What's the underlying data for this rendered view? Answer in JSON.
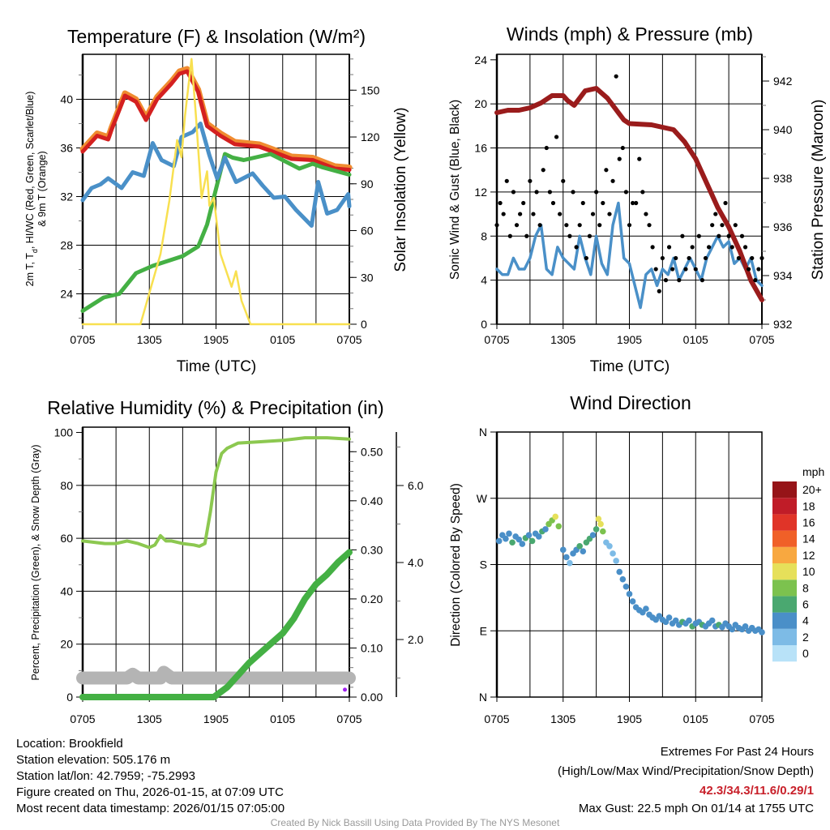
{
  "chart_data": [
    {
      "type": "line",
      "title": "Temperature (F) & Insolation (W/m²)",
      "xlabel": "Time (UTC)",
      "x_units": "hours since 0705 UTC",
      "x_ticks": [
        "0705",
        "1305",
        "1905",
        "0105",
        "0705"
      ],
      "ylabel_left": {
        "a": "2m T, T",
        "sub": "d",
        "b": ", HI/WC (Red, Green, Scarlet/Blue)",
        "line2": "& 9m T (Orange)"
      },
      "ylabel_right": "Solar Insolation (Yellow)",
      "ylim": [
        21.5,
        43.7
      ],
      "y_ticks": [
        "24",
        "28",
        "32",
        "36",
        "40"
      ],
      "y2lim": [
        0,
        173
      ],
      "y2_ticks": [
        "0",
        "30",
        "60",
        "90",
        "120",
        "150"
      ],
      "series": [
        {
          "name": "9m T",
          "color": "#f08c30",
          "axis": "left",
          "x": [
            0,
            1.3,
            2.3,
            2.6,
            3.8,
            4.8,
            5.7,
            6.7,
            8,
            8.7,
            9.4,
            10.4,
            11.2,
            12.4,
            13.7,
            15.9,
            17.1,
            18.8,
            20.7,
            22.7,
            24
          ],
          "values": [
            35.9,
            37.2,
            36.9,
            37.7,
            40.5,
            40.0,
            38.5,
            40.2,
            41.5,
            42.3,
            42.5,
            40.8,
            38.0,
            37.2,
            36.5,
            36.3,
            35.9,
            35.3,
            35.2,
            34.5,
            34.4
          ]
        },
        {
          "name": "2m T",
          "color": "#d42020",
          "axis": "left",
          "x": [
            0,
            1.3,
            2.3,
            2.6,
            3.8,
            4.8,
            5.7,
            6.7,
            8,
            8.7,
            9.4,
            10.4,
            11.2,
            12.4,
            13.7,
            15.9,
            17.1,
            18.8,
            20.7,
            22.7,
            24
          ],
          "values": [
            35.7,
            37.0,
            36.7,
            37.5,
            40.3,
            39.8,
            38.3,
            40.0,
            41.3,
            42.1,
            42.3,
            40.6,
            37.8,
            37.0,
            36.3,
            36.1,
            35.7,
            35.1,
            35.0,
            34.3,
            34.2
          ]
        },
        {
          "name": "Td",
          "color": "#44b044",
          "axis": "left",
          "x": [
            0,
            1.9,
            3.3,
            4.8,
            6.3,
            9,
            10.4,
            11.2,
            12.1,
            12.8,
            13.5,
            14.5,
            16.9,
            18,
            19.5,
            20.7,
            21.6,
            24
          ],
          "values": [
            22.6,
            23.7,
            24.0,
            25.7,
            26.3,
            27.1,
            27.9,
            29.7,
            33.0,
            35.5,
            35.2,
            35.0,
            35.5,
            35.0,
            34.3,
            34.7,
            34.4,
            33.8
          ]
        },
        {
          "name": "Wind Chill",
          "color": "#4a90c8",
          "axis": "left",
          "x": [
            0,
            0.8,
            1.6,
            2.3,
            3.5,
            4.5,
            5.5,
            6.3,
            7.1,
            8.2,
            8.9,
            9.9,
            10.6,
            11.4,
            12.1,
            12.8,
            13.8,
            15.3,
            16.2,
            17.2,
            18.2,
            19.2,
            20.6,
            21.2,
            22,
            22.9,
            23.9,
            24
          ],
          "values": [
            31.7,
            32.7,
            33.0,
            33.5,
            32.7,
            34.0,
            33.7,
            36.4,
            35.0,
            34.5,
            36.9,
            37.3,
            38.0,
            35.4,
            33.5,
            35.2,
            33.2,
            33.9,
            32.9,
            31.9,
            32.0,
            30.9,
            29.6,
            33.2,
            30.6,
            30.9,
            32.2,
            31.2
          ]
        },
        {
          "name": "Solar Insolation",
          "color": "#f8e050",
          "axis": "right",
          "x": [
            0,
            5.2,
            6,
            7,
            7.8,
            8.5,
            8.9,
            9.2,
            9.8,
            10.2,
            10.7,
            11.2,
            11.4,
            11.8,
            12.4,
            13.4,
            13.8,
            14.3,
            15.1,
            24
          ],
          "values": [
            0,
            0,
            20,
            45,
            79,
            118,
            107,
            133,
            170,
            133,
            81,
            98,
            76,
            81,
            45,
            24,
            34,
            15,
            0,
            0
          ]
        }
      ]
    },
    {
      "type": "line",
      "title": "Winds (mph) & Pressure (mb)",
      "xlabel": "Time (UTC)",
      "x_ticks": [
        "0705",
        "1305",
        "1905",
        "0105",
        "0705"
      ],
      "ylabel_left": "Sonic Wind & Gust (Blue, Black)",
      "ylabel_right": "Station Pressure (Maroon)",
      "ylim": [
        0,
        24.5
      ],
      "y_ticks": [
        "0",
        "4",
        "8",
        "12",
        "16",
        "20",
        "24"
      ],
      "y2lim": [
        932,
        943.1
      ],
      "y2_ticks": [
        "932",
        "934",
        "936",
        "938",
        "940",
        "942"
      ],
      "wind": {
        "name": "Sonic Wind",
        "color": "#4a90c8",
        "x_start": 0,
        "x_step": 0.5,
        "values": [
          5,
          4.5,
          4.5,
          6,
          5,
          5,
          6,
          8,
          9,
          5,
          4.5,
          7,
          6,
          5.5,
          5,
          8,
          6,
          4.5,
          8,
          5.5,
          4.5,
          9,
          11,
          6,
          5.5,
          3.5,
          1.5,
          4.5,
          5,
          3.5,
          5,
          4.5,
          6,
          4,
          5,
          6,
          5,
          4,
          6,
          7,
          8,
          7,
          7.5,
          5.5,
          6,
          5,
          6,
          4,
          3.5
        ]
      },
      "gust": {
        "name": "Gust",
        "color": "#000000",
        "x_start": 0,
        "x_step": 0.3,
        "values": [
          9,
          11,
          10,
          13,
          8,
          12,
          9,
          10,
          11,
          8,
          13,
          10,
          12,
          9,
          14,
          16,
          12,
          11,
          17,
          10,
          13,
          9,
          8,
          12,
          7,
          9,
          11,
          6,
          8,
          10,
          12,
          9,
          11,
          14,
          10,
          13,
          22.5,
          15,
          16,
          12,
          9,
          11,
          11,
          15,
          12,
          10,
          9,
          7,
          5,
          3,
          6,
          4,
          7,
          5,
          6,
          4,
          8,
          5,
          6,
          7,
          5,
          8,
          4,
          6,
          7,
          9,
          10,
          8,
          9,
          11,
          8,
          7,
          9,
          6,
          8,
          7,
          5,
          6,
          4,
          5,
          6
        ]
      },
      "pressure": {
        "name": "Station Pressure",
        "color": "#9a1c1c",
        "x": [
          0,
          1,
          2,
          3,
          4,
          5,
          6,
          6.4,
          7,
          8,
          9,
          10,
          10.5,
          11.5,
          12,
          14,
          16,
          17,
          18,
          19,
          20,
          21,
          22,
          23,
          24
        ],
        "values": [
          940.7,
          940.8,
          940.8,
          940.9,
          941.1,
          941.4,
          941.4,
          941.2,
          941.0,
          941.6,
          941.7,
          941.3,
          941.0,
          940.4,
          940.25,
          940.2,
          940.0,
          939.5,
          938.8,
          937.8,
          936.8,
          936.0,
          935.0,
          933.8,
          933.0
        ]
      }
    },
    {
      "type": "line",
      "title": "Relative Humidity (%) & Precipitation (in)",
      "x_ticks": [
        "0705",
        "1305",
        "1905",
        "0105",
        "0705"
      ],
      "ylabel_left": "Percent, Precipitation (Green), & Snow Depth (Gray)",
      "ylim": [
        0,
        102
      ],
      "y_ticks": [
        "0",
        "20",
        "40",
        "60",
        "80",
        "100"
      ],
      "y2lim": [
        0,
        0.55
      ],
      "y2_ticks": [
        "0.00",
        "0.10",
        "0.20",
        "0.30",
        "0.40",
        "0.50"
      ],
      "y3_ticks": [
        "2.0",
        "4.0",
        "6.0"
      ],
      "series": [
        {
          "name": "Snow Depth",
          "color": "#b4b4b4",
          "axis": "snow",
          "x": [
            0,
            2,
            2.5,
            3,
            4,
            4.5,
            5,
            7,
            7.3,
            8,
            9,
            12,
            16,
            20,
            23,
            24
          ],
          "values": [
            1,
            1,
            1,
            1,
            1,
            1.1,
            1,
            1,
            1.15,
            1,
            1,
            1,
            1,
            1,
            1,
            1
          ]
        },
        {
          "name": "Relative Humidity",
          "color": "#8cc850",
          "axis": "left",
          "x": [
            0,
            1,
            2,
            3,
            4,
            5,
            6,
            6.5,
            7,
            7.5,
            8,
            9,
            10,
            10.5,
            11,
            11.5,
            12,
            12.5,
            13,
            14,
            16,
            18,
            20,
            22,
            24
          ],
          "values": [
            59,
            58.5,
            58,
            58,
            59,
            58,
            56.5,
            57.5,
            61,
            59,
            59,
            58,
            57.5,
            57,
            58,
            70,
            85,
            92,
            94,
            96,
            96.5,
            97,
            98,
            98,
            97.5
          ]
        },
        {
          "name": "Precipitation",
          "color": "#44b044",
          "axis": "right",
          "x": [
            0,
            11.8,
            13,
            14,
            15,
            16,
            17,
            18,
            19,
            20,
            21,
            22,
            23,
            24
          ],
          "values": [
            0,
            0,
            0.02,
            0.045,
            0.07,
            0.09,
            0.11,
            0.13,
            0.16,
            0.2,
            0.23,
            0.25,
            0.275,
            0.295
          ]
        }
      ],
      "marker": {
        "color": "#a020f0",
        "x": 23.6,
        "value": 0.015
      }
    },
    {
      "type": "scatter",
      "title": "Wind Direction",
      "x_ticks": [
        "0705",
        "1305",
        "1905",
        "0105",
        "0705"
      ],
      "ylabel_left": "Direction (Colored By Speed)",
      "y_ticks": [
        "N",
        "E",
        "S",
        "W",
        "N"
      ],
      "ylim": [
        0,
        360
      ],
      "colorbar": {
        "title": "mph",
        "labels": [
          "0",
          "2",
          "4",
          "6",
          "8",
          "10",
          "12",
          "14",
          "16",
          "18",
          "20+"
        ],
        "colors": [
          "#b8e2f8",
          "#7dbbe6",
          "#4a8fc8",
          "#4aa870",
          "#7cc24e",
          "#e6e05a",
          "#f8a840",
          "#f06028",
          "#e03428",
          "#c01c28",
          "#961418"
        ]
      },
      "points": [
        [
          0.2,
          212,
          4
        ],
        [
          0.5,
          220,
          4
        ],
        [
          0.8,
          215,
          5
        ],
        [
          1.1,
          222,
          4
        ],
        [
          1.4,
          210,
          6
        ],
        [
          1.7,
          218,
          4
        ],
        [
          2,
          214,
          5
        ],
        [
          2.3,
          208,
          4
        ],
        [
          2.6,
          216,
          6
        ],
        [
          2.9,
          220,
          4
        ],
        [
          3.2,
          212,
          6
        ],
        [
          3.5,
          222,
          4
        ],
        [
          3.8,
          218,
          5
        ],
        [
          4.1,
          225,
          6
        ],
        [
          4.4,
          228,
          4
        ],
        [
          4.7,
          235,
          8
        ],
        [
          5,
          240,
          9
        ],
        [
          5.3,
          245,
          11
        ],
        [
          5.6,
          232,
          8
        ],
        [
          6,
          200,
          4
        ],
        [
          6.3,
          190,
          4
        ],
        [
          6.6,
          182,
          3
        ],
        [
          6.9,
          195,
          5
        ],
        [
          7.2,
          200,
          4
        ],
        [
          7.5,
          205,
          6
        ],
        [
          7.8,
          198,
          4
        ],
        [
          8.1,
          210,
          6
        ],
        [
          8.4,
          215,
          7
        ],
        [
          8.7,
          220,
          4
        ],
        [
          9,
          228,
          7
        ],
        [
          9.2,
          242,
          11
        ],
        [
          9.4,
          235,
          10
        ],
        [
          9.6,
          225,
          8
        ],
        [
          9.9,
          210,
          2
        ],
        [
          10.2,
          205,
          2
        ],
        [
          10.5,
          195,
          2
        ],
        [
          10.8,
          185,
          3
        ],
        [
          11.1,
          170,
          4
        ],
        [
          11.4,
          160,
          4
        ],
        [
          11.7,
          150,
          4
        ],
        [
          12,
          140,
          4
        ],
        [
          12.3,
          130,
          4
        ],
        [
          12.6,
          122,
          4
        ],
        [
          12.9,
          118,
          4
        ],
        [
          13.2,
          115,
          5
        ],
        [
          13.5,
          120,
          4
        ],
        [
          13.8,
          112,
          4
        ],
        [
          14.1,
          108,
          4
        ],
        [
          14.4,
          105,
          4
        ],
        [
          14.7,
          110,
          4
        ],
        [
          15,
          105,
          5
        ],
        [
          15.3,
          102,
          4
        ],
        [
          15.6,
          108,
          4
        ],
        [
          15.9,
          100,
          4
        ],
        [
          16.2,
          104,
          4
        ],
        [
          16.5,
          98,
          4
        ],
        [
          16.8,
          102,
          6
        ],
        [
          17.1,
          100,
          4
        ],
        [
          17.4,
          104,
          4
        ],
        [
          17.7,
          96,
          6
        ],
        [
          18,
          100,
          4
        ],
        [
          18.3,
          102,
          4
        ],
        [
          18.6,
          98,
          6
        ],
        [
          18.9,
          96,
          4
        ],
        [
          19.2,
          100,
          4
        ],
        [
          19.5,
          104,
          4
        ],
        [
          19.8,
          96,
          4
        ],
        [
          20.1,
          98,
          6
        ],
        [
          20.4,
          95,
          4
        ],
        [
          20.7,
          100,
          4
        ],
        [
          21,
          96,
          4
        ],
        [
          21.3,
          92,
          4
        ],
        [
          21.6,
          98,
          4
        ],
        [
          21.9,
          94,
          4
        ],
        [
          22.2,
          92,
          4
        ],
        [
          22.5,
          96,
          4
        ],
        [
          22.8,
          90,
          4
        ],
        [
          23.1,
          94,
          4
        ],
        [
          23.4,
          90,
          4
        ],
        [
          23.7,
          92,
          4
        ],
        [
          24,
          88,
          4
        ]
      ]
    }
  ],
  "footer": {
    "location": "Location: Brookfield",
    "elevation": "Station elevation: 505.176 m",
    "latlon": "Station lat/lon: 42.7959; -75.2993",
    "created": "Figure created on Thu, 2026-01-15, at 07:09 UTC",
    "recent": "Most recent data timestamp: 2026/01/15 07:05:00"
  },
  "extremes": {
    "title": "Extremes For Past 24 Hours",
    "subtitle": "(High/Low/Max Wind/Precipitation/Snow Depth)",
    "values": "42.3/34.3/11.6/0.29/1",
    "gust": "Max Gust: 22.5 mph On 01/14 at 1755 UTC"
  },
  "credit": "Created By Nick Bassill Using Data Provided By The NYS Mesonet"
}
